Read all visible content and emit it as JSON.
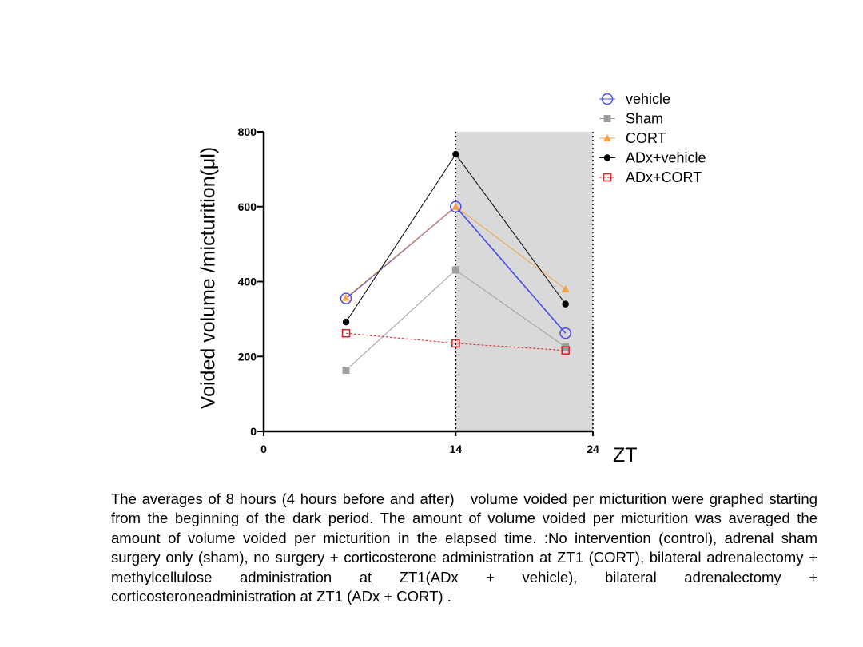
{
  "chart_data": {
    "type": "line",
    "x_ticks": [
      0,
      14,
      24
    ],
    "y_ticks": [
      0,
      200,
      400,
      600,
      800
    ],
    "xlim": [
      0,
      24
    ],
    "ylim": [
      0,
      800
    ],
    "xlabel": "ZT",
    "ylabel": "Voided volume /micturition(μl)",
    "shaded_region": {
      "from": 14,
      "to": 24,
      "color": "#d9d9d9"
    },
    "legend_position": "top-right",
    "series": [
      {
        "name": "vehicle",
        "color": "#4a4ae8",
        "marker": "open-circle",
        "dash": false,
        "x": [
          6,
          14,
          22
        ],
        "values": [
          355,
          600,
          262
        ]
      },
      {
        "name": "Sham",
        "color": "#9e9e9e",
        "marker": "square",
        "dash": false,
        "x": [
          6,
          14,
          22
        ],
        "values": [
          163,
          431,
          225
        ]
      },
      {
        "name": "CORT",
        "color": "#f4a24a",
        "marker": "triangle",
        "dash": false,
        "x": [
          6,
          14,
          22
        ],
        "values": [
          357,
          600,
          380
        ]
      },
      {
        "name": "ADx+vehicle",
        "color": "#000000",
        "marker": "circle",
        "dash": false,
        "x": [
          6,
          14,
          22
        ],
        "values": [
          292,
          740,
          340
        ]
      },
      {
        "name": "ADx+CORT",
        "color": "#e02020",
        "marker": "open-square",
        "dash": true,
        "x": [
          6,
          14,
          22
        ],
        "values": [
          262,
          235,
          216
        ]
      }
    ]
  },
  "caption": "The averages of 8 hours (4 hours before and after)   volume voided per micturition were graphed starting from the beginning of the dark period. The amount of volume voided per micturition was averaged the amount of volume voided per micturition in the elapsed time. :No intervention (control), adrenal sham surgery only (sham), no surgery + corticosterone administration at ZT1 (CORT), bilateral adrenalectomy + methylcellulose administration at ZT1(ADx + vehicle), bilateral adrenalectomy + corticosteroneadministration at ZT1 (ADx + CORT) ."
}
